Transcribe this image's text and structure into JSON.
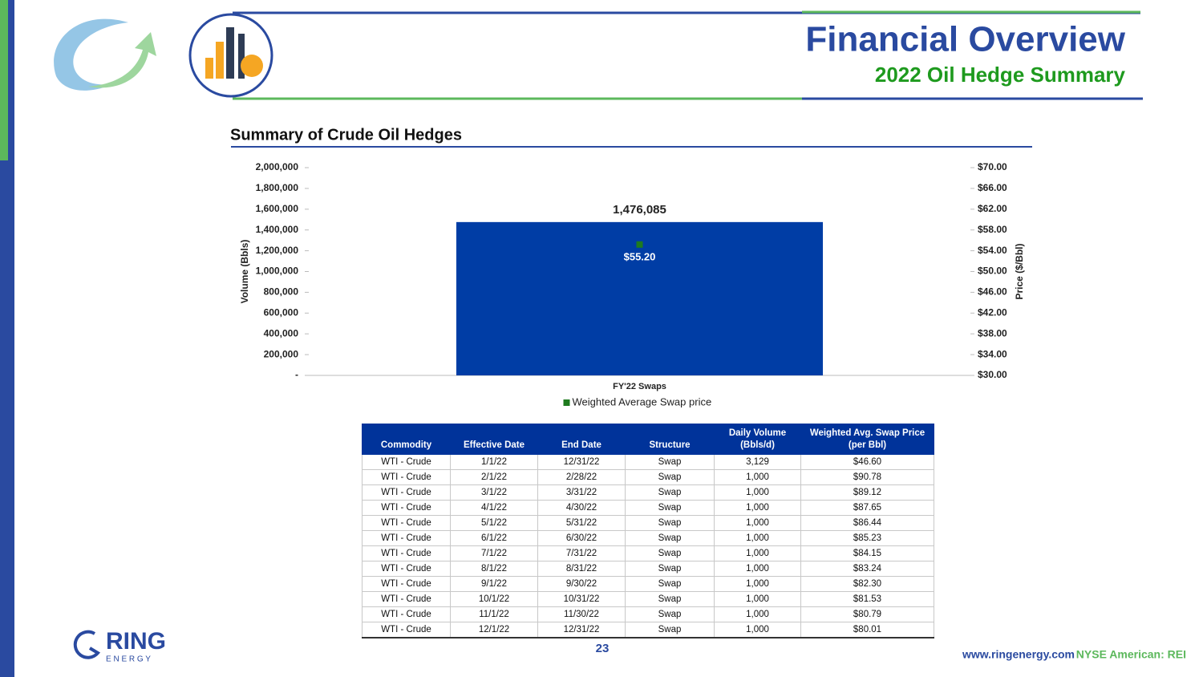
{
  "header": {
    "title": "Financial Overview",
    "subtitle": "2022 Oil Hedge Summary"
  },
  "chart_data": {
    "type": "bar",
    "title": "Summary of Crude Oil Hedges",
    "categories": [
      "FY'22 Swaps"
    ],
    "series": [
      {
        "color": "#003da5",
        "values": [
          1476085
        ],
        "value_labels": [
          "1,476,085"
        ]
      },
      {
        "name": "Weighted Average Swap price",
        "type": "scatter",
        "axis": "y2",
        "color": "#1e7b1e",
        "values": [
          55.2
        ],
        "value_labels": [
          "$55.20"
        ]
      }
    ],
    "ylabel": "Volume (Bbls)",
    "y2label": "Price ($/Bbl)",
    "ylim": [
      0,
      2000000
    ],
    "yticks": [
      {
        "value": 0,
        "label": "-"
      },
      {
        "value": 200000,
        "label": "200,000"
      },
      {
        "value": 400000,
        "label": "400,000"
      },
      {
        "value": 600000,
        "label": "600,000"
      },
      {
        "value": 800000,
        "label": "800,000"
      },
      {
        "value": 1000000,
        "label": "1,000,000"
      },
      {
        "value": 1200000,
        "label": "1,200,000"
      },
      {
        "value": 1400000,
        "label": "1,400,000"
      },
      {
        "value": 1600000,
        "label": "1,600,000"
      },
      {
        "value": 1800000,
        "label": "1,800,000"
      },
      {
        "value": 2000000,
        "label": "2,000,000"
      }
    ],
    "y2lim": [
      30,
      70
    ],
    "y2ticks": [
      {
        "value": 30,
        "label": "$30.00"
      },
      {
        "value": 34,
        "label": "$34.00"
      },
      {
        "value": 38,
        "label": "$38.00"
      },
      {
        "value": 42,
        "label": "$42.00"
      },
      {
        "value": 46,
        "label": "$46.00"
      },
      {
        "value": 50,
        "label": "$50.00"
      },
      {
        "value": 54,
        "label": "$54.00"
      },
      {
        "value": 58,
        "label": "$58.00"
      },
      {
        "value": 62,
        "label": "$62.00"
      },
      {
        "value": 66,
        "label": "$66.00"
      },
      {
        "value": 70,
        "label": "$70.00"
      }
    ],
    "grid": false,
    "legend": "bottom"
  },
  "table": {
    "header": [
      "Commodity",
      "Effective Date",
      "End Date",
      "Structure",
      "Daily Volume (Bbls/d)",
      "Weighted Avg. Swap Price (per Bbl)"
    ],
    "rows": [
      [
        "WTI - Crude",
        "1/1/22",
        "12/31/22",
        "Swap",
        "3,129",
        "$46.60"
      ],
      [
        "WTI - Crude",
        "2/1/22",
        "2/28/22",
        "Swap",
        "1,000",
        "$90.78"
      ],
      [
        "WTI - Crude",
        "3/1/22",
        "3/31/22",
        "Swap",
        "1,000",
        "$89.12"
      ],
      [
        "WTI - Crude",
        "4/1/22",
        "4/30/22",
        "Swap",
        "1,000",
        "$87.65"
      ],
      [
        "WTI - Crude",
        "5/1/22",
        "5/31/22",
        "Swap",
        "1,000",
        "$86.44"
      ],
      [
        "WTI - Crude",
        "6/1/22",
        "6/30/22",
        "Swap",
        "1,000",
        "$85.23"
      ],
      [
        "WTI - Crude",
        "7/1/22",
        "7/31/22",
        "Swap",
        "1,000",
        "$84.15"
      ],
      [
        "WTI - Crude",
        "8/1/22",
        "8/31/22",
        "Swap",
        "1,000",
        "$83.24"
      ],
      [
        "WTI - Crude",
        "9/1/22",
        "9/30/22",
        "Swap",
        "1,000",
        "$82.30"
      ],
      [
        "WTI - Crude",
        "10/1/22",
        "10/31/22",
        "Swap",
        "1,000",
        "$81.53"
      ],
      [
        "WTI - Crude",
        "11/1/22",
        "11/30/22",
        "Swap",
        "1,000",
        "$80.79"
      ],
      [
        "WTI - Crude",
        "12/1/22",
        "12/31/22",
        "Swap",
        "1,000",
        "$80.01"
      ]
    ]
  },
  "footer": {
    "logo": "RING",
    "logo_sub": "E N E R G Y",
    "page": "23",
    "url": "www.ringenergy.com",
    "ticker": "NYSE American: REI"
  }
}
